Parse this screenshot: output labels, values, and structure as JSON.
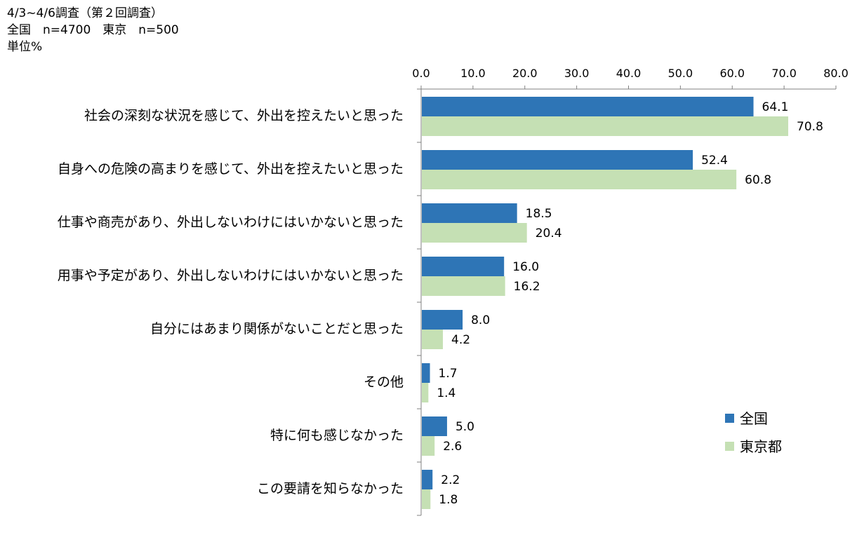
{
  "header": {
    "line1": "4/3~4/6調査（第２回調査）",
    "line2": "全国　n=4700　東京　n=500",
    "line3": "単位%"
  },
  "colors": {
    "series1": "#2e75b6",
    "series2": "#c5e0b4",
    "axis": "#808080"
  },
  "chart_data": {
    "type": "bar",
    "orientation": "horizontal",
    "categories": [
      "社会の深刻な状況を感じて、外出を控えたいと思った",
      "自身への危険の高まりを感じて、外出を控えたいと思った",
      "仕事や商売があり、外出しないわけにはいかないと思った",
      "用事や予定があり、外出しないわけにはいかないと思った",
      "自分にはあまり関係がないことだと思った",
      "その他",
      "特に何も感じなかった",
      "この要請を知らなかった"
    ],
    "series": [
      {
        "name": "全国",
        "values": [
          64.1,
          52.4,
          18.5,
          16.0,
          8.0,
          1.7,
          5.0,
          2.2
        ],
        "labels": [
          "64.1",
          "52.4",
          "18.5",
          "16.0",
          "8.0",
          "1.7",
          "5.0",
          "2.2"
        ]
      },
      {
        "name": "東京都",
        "values": [
          70.8,
          60.8,
          20.4,
          16.2,
          4.2,
          1.4,
          2.6,
          1.8
        ],
        "labels": [
          "70.8",
          "60.8",
          "20.4",
          "16.2",
          "4.2",
          "1.4",
          "2.6",
          "1.8"
        ]
      }
    ],
    "xlim": [
      0,
      80
    ],
    "ticks": [
      "0.0",
      "10.0",
      "20.0",
      "30.0",
      "40.0",
      "50.0",
      "60.0",
      "70.0",
      "80.0"
    ],
    "tick_values": [
      0,
      10,
      20,
      30,
      40,
      50,
      60,
      70,
      80
    ],
    "axis_position": "top",
    "grid": false,
    "legend": "right"
  }
}
